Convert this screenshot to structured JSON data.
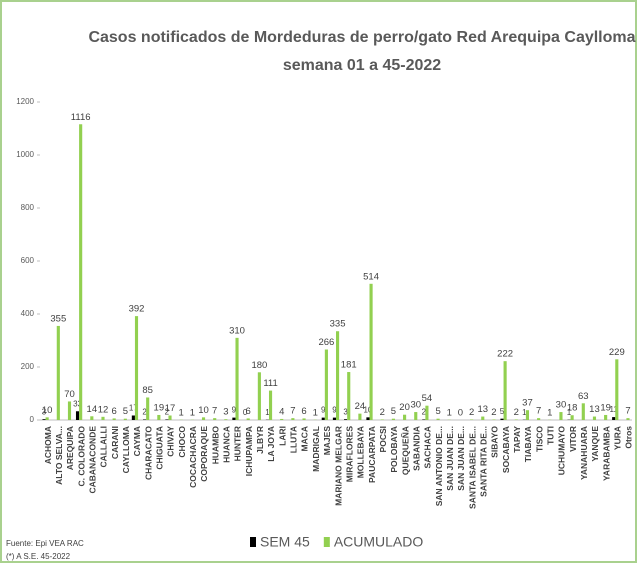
{
  "chart_data": {
    "type": "bar",
    "title": "Casos notificados de Mordeduras de perro/gato Red Arequipa Caylloma",
    "subtitle": "semana 01 a 45-2022",
    "source": "Fuente: Epi VEA RAC",
    "note": "(*) A S.E. 45-2022",
    "categories": [
      "ACHOMA",
      "ALTO SELVA...",
      "AREQUIPA",
      "C. COLORADO",
      "CABANACONDE",
      "CALLALLI",
      "CARANI",
      "CAYLLOMA",
      "CAYMA",
      "CHARACATO",
      "CHIGUATA",
      "CHIVAY",
      "CHOCO",
      "COCACHACRA",
      "COPORAQUE",
      "HUAMBO",
      "HUANCA",
      "HUNTER",
      "ICHUPAMPA",
      "JLBYR",
      "LA JOYA",
      "LARI",
      "LLUTA",
      "MACA",
      "MADRIGAL",
      "MAJES",
      "MARIANO MELGAR",
      "MIRAFLORES",
      "MOLLEBAYA",
      "PAUCARPATA",
      "POCSI",
      "POLOBAYA",
      "QUEQUEÑA",
      "SABANDIA",
      "SACHACA",
      "SAN ANTONIO DE...",
      "SAN JUAN DE...",
      "SAN JUAN DE...",
      "SANTA ISABEL DE...",
      "SANTA RITA DE...",
      "SIBAYO",
      "SOCABAYA",
      "TAPAY",
      "TIABAYA",
      "TISCO",
      "TUTI",
      "UCHUMAYO",
      "VITOR",
      "YANAHUARA",
      "YANQUE",
      "YARABAMBA",
      "YURA",
      "Otros"
    ],
    "series": [
      {
        "name": "SEM 45",
        "color": "#000000",
        "values": [
          3,
          null,
          null,
          33,
          null,
          null,
          null,
          null,
          17,
          2,
          null,
          2,
          null,
          null,
          null,
          null,
          null,
          9,
          0,
          null,
          1,
          null,
          null,
          null,
          null,
          9,
          9,
          3,
          null,
          10,
          null,
          null,
          null,
          null,
          2,
          null,
          null,
          null,
          null,
          null,
          null,
          5,
          null,
          1,
          null,
          null,
          null,
          1,
          null,
          null,
          null,
          11,
          null
        ]
      },
      {
        "name": "ACUMULADO",
        "color": "#92d050",
        "values": [
          10,
          355,
          70,
          1116,
          14,
          12,
          6,
          5,
          392,
          85,
          19,
          17,
          1,
          1,
          10,
          7,
          3,
          310,
          6,
          180,
          111,
          4,
          7,
          6,
          1,
          266,
          335,
          181,
          24,
          514,
          2,
          5,
          20,
          30,
          54,
          5,
          1,
          0,
          2,
          13,
          2,
          222,
          2,
          37,
          7,
          1,
          30,
          18,
          63,
          13,
          19,
          229,
          7
        ]
      }
    ],
    "ylim": [
      0,
      1200
    ],
    "yticks": [
      0,
      200,
      400,
      600,
      800,
      1000,
      1200
    ],
    "legend": "bottom"
  }
}
